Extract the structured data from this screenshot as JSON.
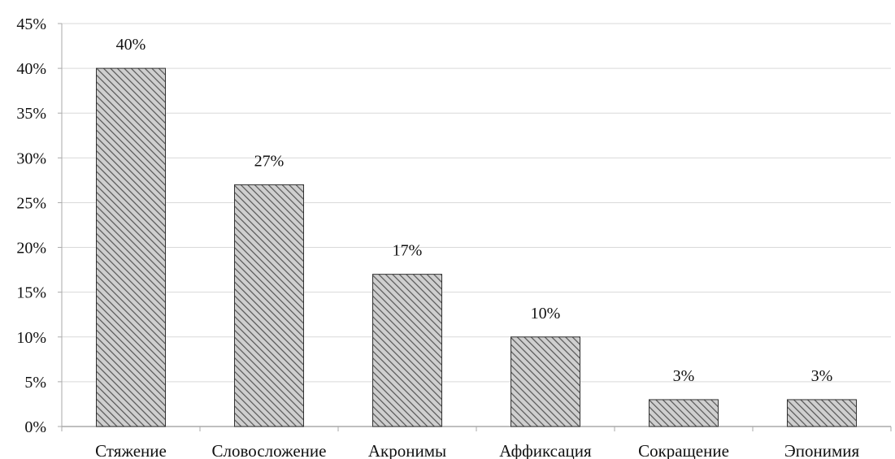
{
  "chart_data": {
    "type": "bar",
    "categories": [
      "Стяжение",
      "Словосложение",
      "Акронимы",
      "Аффиксация",
      "Сокращение",
      "Эпонимия"
    ],
    "values": [
      40,
      27,
      17,
      10,
      3,
      3
    ],
    "data_labels": [
      "40%",
      "27%",
      "17%",
      "10%",
      "3%",
      "3%"
    ],
    "y_ticks": [
      0,
      5,
      10,
      15,
      20,
      25,
      30,
      35,
      40,
      45
    ],
    "y_tick_labels": [
      "0%",
      "5%",
      "10%",
      "15%",
      "20%",
      "25%",
      "30%",
      "35%",
      "40%",
      "45%"
    ],
    "ylim": [
      0,
      45
    ],
    "unit": "%",
    "title": "",
    "xlabel": "",
    "ylabel": "",
    "grid": true,
    "legend": false,
    "colors": {
      "bar_fill": "#c8c8c8",
      "bar_hatch": "#555555",
      "bar_stroke": "#333333",
      "grid": "#d9d9d9",
      "axis": "#aaaaaa",
      "text": "#111111"
    }
  }
}
